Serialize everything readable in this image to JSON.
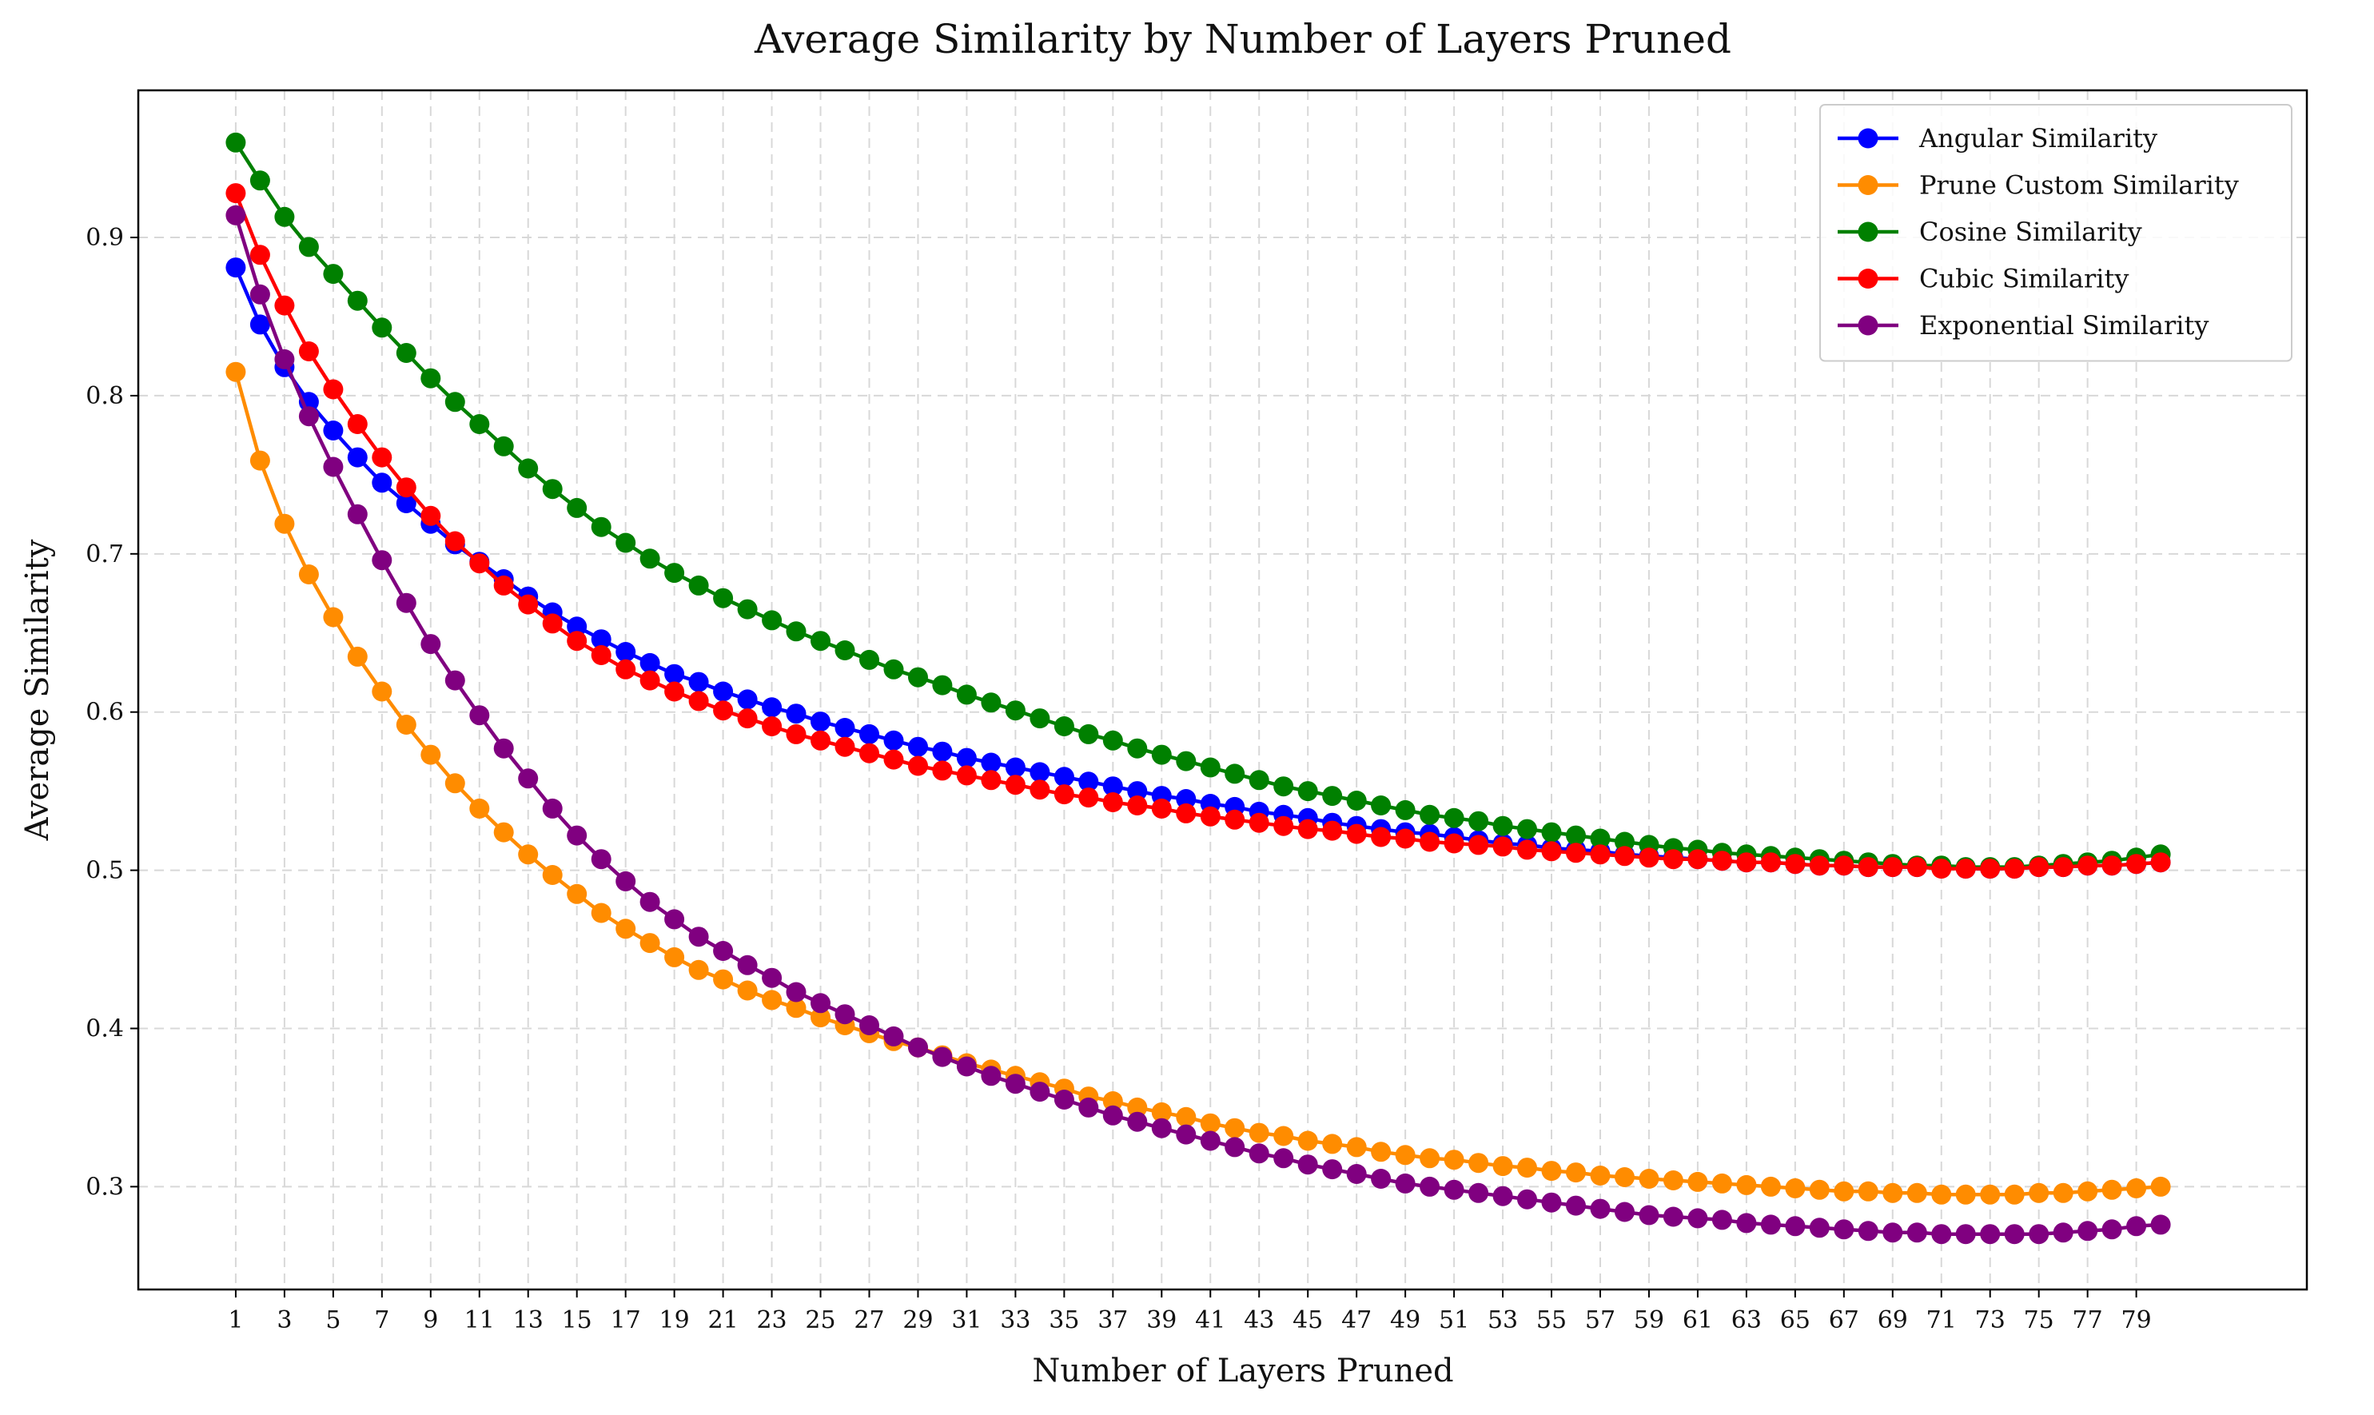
{
  "chart_data": {
    "type": "line",
    "title": "Average Similarity by Number of Layers Pruned",
    "xlabel": "Number of Layers Pruned",
    "ylabel": "Average Similarity",
    "xlim": [
      -3,
      86
    ],
    "ylim": [
      0.235,
      0.993
    ],
    "xticks": [
      1,
      3,
      5,
      7,
      9,
      11,
      13,
      15,
      17,
      19,
      21,
      23,
      25,
      27,
      29,
      31,
      33,
      35,
      37,
      39,
      41,
      43,
      45,
      47,
      49,
      51,
      53,
      55,
      57,
      59,
      61,
      63,
      65,
      67,
      69,
      71,
      73,
      75,
      77,
      79
    ],
    "xtick_labels": [
      "1",
      "3",
      "5",
      "7",
      "9",
      "11",
      "13",
      "15",
      "17",
      "19",
      "21",
      "23",
      "25",
      "27",
      "29",
      "31",
      "33",
      "35",
      "37",
      "39",
      "41",
      "43",
      "45",
      "47",
      "49",
      "51",
      "53",
      "55",
      "57",
      "59",
      "61",
      "63",
      "65",
      "67",
      "69",
      "71",
      "73",
      "75",
      "77",
      "79"
    ],
    "yticks": [
      0.3,
      0.4,
      0.5,
      0.6,
      0.7,
      0.8,
      0.9
    ],
    "ytick_labels": [
      "0.3",
      "0.4",
      "0.5",
      "0.6",
      "0.7",
      "0.8",
      "0.9"
    ],
    "grid": true,
    "legend_position": "top-right",
    "x": [
      1,
      2,
      3,
      4,
      5,
      6,
      7,
      8,
      9,
      10,
      11,
      12,
      13,
      14,
      15,
      16,
      17,
      18,
      19,
      20,
      21,
      22,
      23,
      24,
      25,
      26,
      27,
      28,
      29,
      30,
      31,
      32,
      33,
      34,
      35,
      36,
      37,
      38,
      39,
      40,
      41,
      42,
      43,
      44,
      45,
      46,
      47,
      48,
      49,
      50,
      51,
      52,
      53,
      54,
      55,
      56,
      57,
      58,
      59,
      60,
      61,
      62,
      63,
      64,
      65,
      66,
      67,
      68,
      69,
      70,
      71,
      72,
      73,
      74,
      75,
      76,
      77,
      78,
      79,
      80
    ],
    "series": [
      {
        "name": "Angular Similarity",
        "color": "#0000ff",
        "values": [
          0.881,
          0.845,
          0.818,
          0.796,
          0.778,
          0.761,
          0.745,
          0.732,
          0.719,
          0.706,
          0.695,
          0.684,
          0.673,
          0.663,
          0.654,
          0.646,
          0.638,
          0.631,
          0.624,
          0.619,
          0.613,
          0.608,
          0.603,
          0.599,
          0.594,
          0.59,
          0.586,
          0.582,
          0.578,
          0.575,
          0.571,
          0.568,
          0.565,
          0.562,
          0.559,
          0.556,
          0.553,
          0.55,
          0.547,
          0.545,
          0.542,
          0.54,
          0.537,
          0.535,
          0.533,
          0.53,
          0.528,
          0.526,
          0.524,
          0.523,
          0.521,
          0.519,
          0.517,
          0.516,
          0.514,
          0.513,
          0.512,
          0.51,
          0.509,
          0.508,
          0.507,
          0.506,
          0.505,
          0.505,
          0.504,
          0.503,
          0.503,
          0.502,
          0.502,
          0.502,
          0.502,
          0.501,
          0.501,
          0.501,
          0.502,
          0.502,
          0.503,
          0.503,
          0.504,
          0.505
        ]
      },
      {
        "name": "Prune Custom Similarity",
        "color": "#ff8c00",
        "values": [
          0.815,
          0.759,
          0.719,
          0.687,
          0.66,
          0.635,
          0.613,
          0.592,
          0.573,
          0.555,
          0.539,
          0.524,
          0.51,
          0.497,
          0.485,
          0.473,
          0.463,
          0.454,
          0.445,
          0.437,
          0.431,
          0.424,
          0.418,
          0.413,
          0.407,
          0.402,
          0.397,
          0.392,
          0.388,
          0.383,
          0.378,
          0.374,
          0.37,
          0.366,
          0.362,
          0.357,
          0.354,
          0.35,
          0.347,
          0.344,
          0.34,
          0.337,
          0.334,
          0.332,
          0.329,
          0.327,
          0.325,
          0.322,
          0.32,
          0.318,
          0.317,
          0.315,
          0.313,
          0.312,
          0.31,
          0.309,
          0.307,
          0.306,
          0.305,
          0.304,
          0.303,
          0.302,
          0.301,
          0.3,
          0.299,
          0.298,
          0.297,
          0.297,
          0.296,
          0.296,
          0.295,
          0.295,
          0.295,
          0.295,
          0.296,
          0.296,
          0.297,
          0.298,
          0.299,
          0.3
        ]
      },
      {
        "name": "Cosine Similarity",
        "color": "#008000",
        "values": [
          0.96,
          0.936,
          0.913,
          0.894,
          0.877,
          0.86,
          0.843,
          0.827,
          0.811,
          0.796,
          0.782,
          0.768,
          0.754,
          0.741,
          0.729,
          0.717,
          0.707,
          0.697,
          0.688,
          0.68,
          0.672,
          0.665,
          0.658,
          0.651,
          0.645,
          0.639,
          0.633,
          0.627,
          0.622,
          0.617,
          0.611,
          0.606,
          0.601,
          0.596,
          0.591,
          0.586,
          0.582,
          0.577,
          0.573,
          0.569,
          0.565,
          0.561,
          0.557,
          0.553,
          0.55,
          0.547,
          0.544,
          0.541,
          0.538,
          0.535,
          0.533,
          0.531,
          0.528,
          0.526,
          0.524,
          0.522,
          0.52,
          0.518,
          0.516,
          0.514,
          0.513,
          0.511,
          0.51,
          0.509,
          0.508,
          0.507,
          0.506,
          0.505,
          0.504,
          0.503,
          0.503,
          0.502,
          0.502,
          0.502,
          0.503,
          0.504,
          0.505,
          0.506,
          0.508,
          0.51
        ]
      },
      {
        "name": "Cubic Similarity",
        "color": "#ff0000",
        "values": [
          0.928,
          0.889,
          0.857,
          0.828,
          0.804,
          0.782,
          0.761,
          0.742,
          0.724,
          0.708,
          0.694,
          0.68,
          0.668,
          0.656,
          0.645,
          0.636,
          0.627,
          0.62,
          0.613,
          0.607,
          0.601,
          0.596,
          0.591,
          0.586,
          0.582,
          0.578,
          0.574,
          0.57,
          0.566,
          0.563,
          0.56,
          0.557,
          0.554,
          0.551,
          0.548,
          0.546,
          0.543,
          0.541,
          0.539,
          0.536,
          0.534,
          0.532,
          0.53,
          0.528,
          0.526,
          0.525,
          0.523,
          0.521,
          0.52,
          0.518,
          0.517,
          0.516,
          0.515,
          0.513,
          0.512,
          0.511,
          0.51,
          0.509,
          0.508,
          0.507,
          0.507,
          0.506,
          0.505,
          0.505,
          0.504,
          0.503,
          0.503,
          0.502,
          0.502,
          0.502,
          0.501,
          0.501,
          0.501,
          0.501,
          0.502,
          0.502,
          0.503,
          0.503,
          0.504,
          0.505
        ]
      },
      {
        "name": "Exponential Similarity",
        "color": "#800080",
        "values": [
          0.914,
          0.864,
          0.823,
          0.787,
          0.755,
          0.725,
          0.696,
          0.669,
          0.643,
          0.62,
          0.598,
          0.577,
          0.558,
          0.539,
          0.522,
          0.507,
          0.493,
          0.48,
          0.469,
          0.458,
          0.449,
          0.44,
          0.432,
          0.423,
          0.416,
          0.409,
          0.402,
          0.395,
          0.388,
          0.382,
          0.376,
          0.37,
          0.365,
          0.36,
          0.355,
          0.35,
          0.345,
          0.341,
          0.337,
          0.333,
          0.329,
          0.325,
          0.321,
          0.318,
          0.314,
          0.311,
          0.308,
          0.305,
          0.302,
          0.3,
          0.298,
          0.296,
          0.294,
          0.292,
          0.29,
          0.288,
          0.286,
          0.284,
          0.282,
          0.281,
          0.28,
          0.279,
          0.277,
          0.276,
          0.275,
          0.274,
          0.273,
          0.272,
          0.271,
          0.271,
          0.27,
          0.27,
          0.27,
          0.27,
          0.27,
          0.271,
          0.272,
          0.273,
          0.275,
          0.276
        ]
      }
    ]
  }
}
